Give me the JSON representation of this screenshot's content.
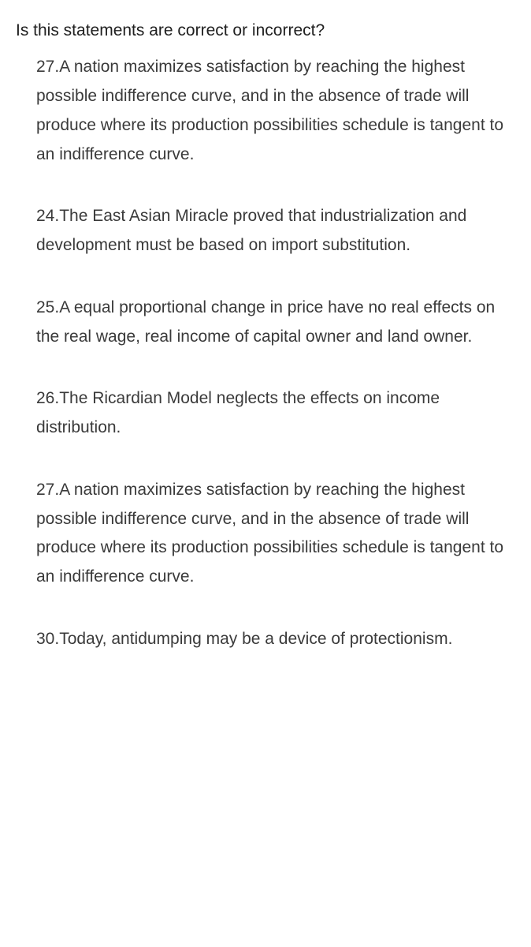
{
  "document": {
    "prompt": "Is this statements are correct or incorrect?",
    "prompt_color": "#202020",
    "text_color": "#3a3a3a",
    "background_color": "#ffffff",
    "font_size_pt": 16,
    "line_height": 1.75,
    "statements": [
      {
        "number": "27",
        "text": "27.A nation maximizes satisfaction by reaching the highest possible indifference curve, and in the absence of trade will produce where its production possibilities schedule is tangent to an indifference curve."
      },
      {
        "number": "24",
        "text": "24.The East Asian Miracle proved that industrialization and development must be based on import substitution."
      },
      {
        "number": "25",
        "text": "25.A equal proportional change in price have no real effects on the real wage, real income of capital owner and land owner."
      },
      {
        "number": "26",
        "text": "26.The Ricardian Model neglects the effects on income distribution."
      },
      {
        "number": "27",
        "text": "27.A nation maximizes satisfaction by reaching the highest possible indifference curve, and in the absence of trade will produce where its production possibilities schedule is tangent to an indifference curve."
      },
      {
        "number": "30",
        "text": "30.Today, antidumping may be a device of protectionism."
      }
    ]
  }
}
